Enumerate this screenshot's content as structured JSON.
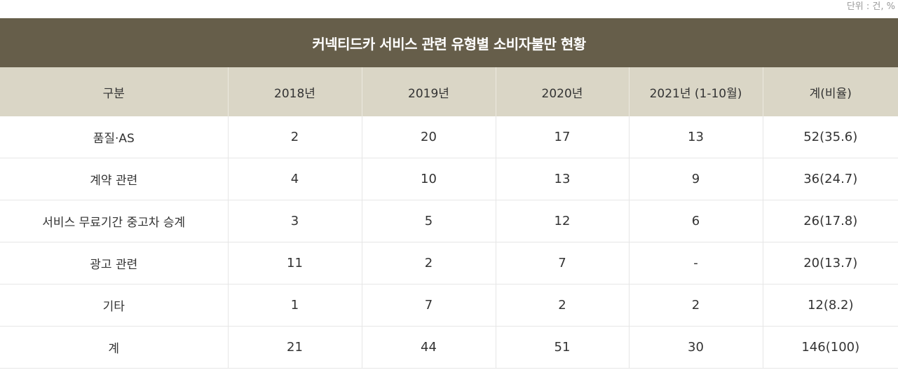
{
  "unit_label": "단위 : 건, %",
  "title": "커넥티드카 서비스 관련 유형별 소비자불만 현황",
  "columns": [
    "구분",
    "2018년",
    "2019년",
    "2020년",
    "2021년 (1-10월)",
    "계(비율)"
  ],
  "rows": [
    [
      "품질·AS",
      "2",
      "20",
      "17",
      "13",
      "52(35.6)"
    ],
    [
      "계약 관련",
      "4",
      "10",
      "13",
      "9",
      "36(24.7)"
    ],
    [
      "서비스 무료기간 중고차 승계",
      "3",
      "5",
      "12",
      "6",
      "26(17.8)"
    ],
    [
      "광고 관련",
      "11",
      "2",
      "7",
      "-",
      "20(13.7)"
    ],
    [
      "기타",
      "1",
      "7",
      "2",
      "2",
      "12(8.2)"
    ],
    [
      "계",
      "21",
      "44",
      "51",
      "30",
      "146(100)"
    ]
  ],
  "colors": {
    "title_bg": "#665e4a",
    "header_bg": "#dad6c6"
  }
}
